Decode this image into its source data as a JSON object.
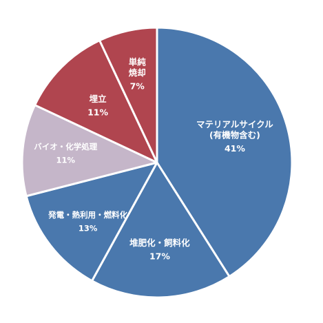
{
  "chart_data": {
    "type": "pie",
    "slices": [
      {
        "label_lines": [
          "マテリアルサイクル",
          "(有機物含む)"
        ],
        "value": 41,
        "value_label": "41%",
        "color": "#4a78ad"
      },
      {
        "label_lines": [
          "堆肥化・飼料化"
        ],
        "value": 17,
        "value_label": "17%",
        "color": "#4a78ad"
      },
      {
        "label_lines": [
          "発電・熱利用・燃料化"
        ],
        "value": 13,
        "value_label": "13%",
        "color": "#4a78ad"
      },
      {
        "label_lines": [
          "バイオ・化学処理"
        ],
        "value": 11,
        "value_label": "11%",
        "color": "#c5b6c9"
      },
      {
        "label_lines": [
          "埋立"
        ],
        "value": 11,
        "value_label": "11%",
        "color": "#b0454f"
      },
      {
        "label_lines": [
          "単純",
          "焼却"
        ],
        "value": 7,
        "value_label": "7%",
        "color": "#b0454f"
      }
    ]
  }
}
